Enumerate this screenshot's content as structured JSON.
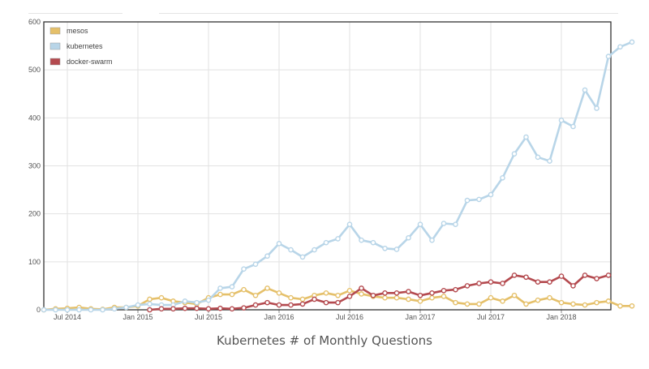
{
  "caption": "Kubernetes # of Monthly Questions",
  "chart_data": {
    "type": "line",
    "title": "",
    "xlabel": "",
    "ylabel": "",
    "ylim": [
      0,
      600
    ],
    "yticks": [
      0,
      100,
      200,
      300,
      400,
      500,
      600
    ],
    "x_start": "2014-05",
    "xtick_labels": [
      {
        "label": "Jul 2014",
        "month": "2014-07"
      },
      {
        "label": "Jan 2015",
        "month": "2015-01"
      },
      {
        "label": "Jul 2015",
        "month": "2015-07"
      },
      {
        "label": "Jan 2016",
        "month": "2016-01"
      },
      {
        "label": "Jul 2016",
        "month": "2016-07"
      },
      {
        "label": "Jan 2017",
        "month": "2017-01"
      },
      {
        "label": "Jul 2017",
        "month": "2017-07"
      },
      {
        "label": "Jan 2018",
        "month": "2018-01"
      }
    ],
    "grid": true,
    "legend_position": "top-left",
    "series": [
      {
        "name": "mesos",
        "color": "#e5c06a",
        "start": "2014-05",
        "values": [
          0,
          2,
          3,
          5,
          2,
          1,
          5,
          5,
          8,
          22,
          25,
          18,
          15,
          12,
          25,
          32,
          32,
          42,
          30,
          45,
          35,
          25,
          22,
          30,
          35,
          30,
          40,
          33,
          28,
          25,
          25,
          22,
          18,
          25,
          28,
          15,
          12,
          12,
          25,
          18,
          30,
          12,
          20,
          25,
          15,
          12,
          10,
          15,
          18,
          8,
          8
        ]
      },
      {
        "name": "kubernetes",
        "color": "#b8d5e8",
        "start": "2014-05",
        "values": [
          0,
          0,
          0,
          0,
          0,
          0,
          2,
          5,
          10,
          12,
          10,
          10,
          18,
          15,
          20,
          45,
          48,
          85,
          95,
          112,
          138,
          125,
          110,
          125,
          140,
          148,
          178,
          145,
          140,
          128,
          126,
          150,
          178,
          145,
          180,
          178,
          228,
          230,
          240,
          275,
          325,
          360,
          318,
          310,
          395,
          382,
          458,
          420,
          528,
          548,
          558
        ]
      },
      {
        "name": "docker-swarm",
        "color": "#b44a4f",
        "start": "2015-02",
        "values": [
          0,
          2,
          2,
          3,
          3,
          2,
          3,
          2,
          4,
          10,
          15,
          10,
          10,
          12,
          22,
          15,
          15,
          28,
          45,
          30,
          35,
          35,
          38,
          30,
          35,
          40,
          42,
          50,
          55,
          58,
          55,
          72,
          68,
          58,
          58,
          70,
          50,
          72,
          65,
          72
        ]
      }
    ]
  }
}
